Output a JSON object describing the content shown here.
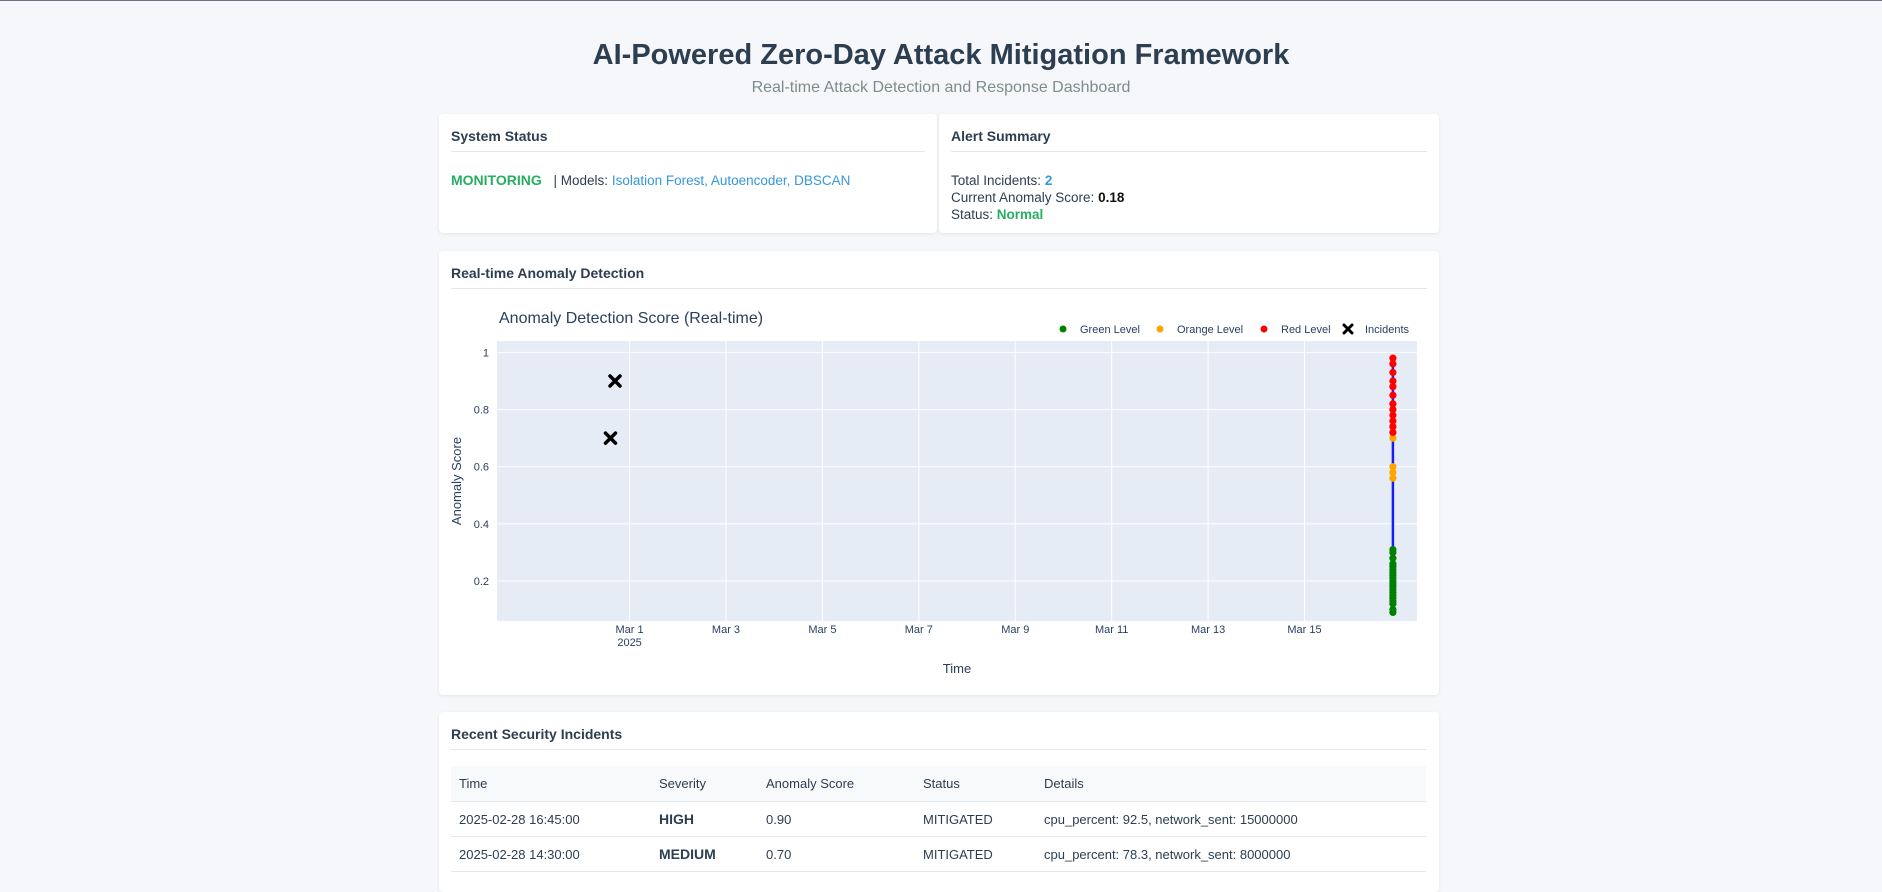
{
  "header": {
    "title": "AI-Powered Zero-Day Attack Mitigation Framework",
    "subtitle": "Real-time Attack Detection and Response Dashboard"
  },
  "system_status": {
    "heading": "System Status",
    "state": "MONITORING",
    "models_label": "| Models:",
    "models_value": "Isolation Forest, Autoencoder, DBSCAN",
    "state_color": "#27ae60"
  },
  "alert_summary": {
    "heading": "Alert Summary",
    "total_label": "Total Incidents:",
    "total_value": "2",
    "score_label": "Current Anomaly Score:",
    "score_value": "0.18",
    "status_label": "Status:",
    "status_value": "Normal"
  },
  "chart_section": {
    "heading": "Real-time Anomaly Detection"
  },
  "chart_data": {
    "type": "scatter",
    "title": "Anomaly Detection Score (Real-time)",
    "xlabel": "Time",
    "ylabel": "Anomaly Score",
    "x_ticks": [
      {
        "date": "2025-03-01",
        "label": "Mar 1",
        "sublabel": "2025"
      },
      {
        "date": "2025-03-03",
        "label": "Mar 3"
      },
      {
        "date": "2025-03-05",
        "label": "Mar 5"
      },
      {
        "date": "2025-03-07",
        "label": "Mar 7"
      },
      {
        "date": "2025-03-09",
        "label": "Mar 9"
      },
      {
        "date": "2025-03-11",
        "label": "Mar 11"
      },
      {
        "date": "2025-03-13",
        "label": "Mar 13"
      },
      {
        "date": "2025-03-15",
        "label": "Mar 15"
      }
    ],
    "y_ticks": [
      0.2,
      0.4,
      0.6,
      0.8,
      1
    ],
    "y_tick_labels": [
      "0.2",
      "0.4",
      "0.6",
      "0.8",
      "1"
    ],
    "xlim": [
      "2025-02-26T06:00",
      "2025-03-17T08:00"
    ],
    "ylim": [
      0.06,
      1.04
    ],
    "grid": true,
    "legend_placement": "top-right",
    "line": {
      "color": "#1a1aff",
      "x": "2025-03-16T20:00",
      "y_range": [
        0.09,
        0.98
      ]
    },
    "series": [
      {
        "name": "Green Level",
        "color": "#008000",
        "x": [
          "2025-03-16T20:00",
          "2025-03-16T20:00",
          "2025-03-16T20:00",
          "2025-03-16T20:00",
          "2025-03-16T20:00",
          "2025-03-16T20:00",
          "2025-03-16T20:00",
          "2025-03-16T20:00",
          "2025-03-16T20:00",
          "2025-03-16T20:00",
          "2025-03-16T20:00",
          "2025-03-16T20:00",
          "2025-03-16T20:00",
          "2025-03-16T20:00",
          "2025-03-16T20:00",
          "2025-03-16T20:00",
          "2025-03-16T20:00",
          "2025-03-16T20:00",
          "2025-03-16T20:00",
          "2025-03-16T20:00"
        ],
        "y": [
          0.09,
          0.1,
          0.12,
          0.13,
          0.14,
          0.15,
          0.16,
          0.17,
          0.18,
          0.19,
          0.2,
          0.21,
          0.22,
          0.23,
          0.24,
          0.25,
          0.26,
          0.28,
          0.3,
          0.31
        ]
      },
      {
        "name": "Orange Level",
        "color": "#ffa500",
        "x": [
          "2025-03-16T20:00",
          "2025-03-16T20:00",
          "2025-03-16T20:00",
          "2025-03-16T20:00"
        ],
        "y": [
          0.56,
          0.58,
          0.6,
          0.7
        ]
      },
      {
        "name": "Red Level",
        "color": "#ff0000",
        "x": [
          "2025-03-16T20:00",
          "2025-03-16T20:00",
          "2025-03-16T20:00",
          "2025-03-16T20:00",
          "2025-03-16T20:00",
          "2025-03-16T20:00",
          "2025-03-16T20:00",
          "2025-03-16T20:00",
          "2025-03-16T20:00",
          "2025-03-16T20:00",
          "2025-03-16T20:00",
          "2025-03-16T20:00"
        ],
        "y": [
          0.72,
          0.74,
          0.76,
          0.78,
          0.8,
          0.82,
          0.85,
          0.88,
          0.9,
          0.93,
          0.96,
          0.98
        ]
      },
      {
        "name": "Incidents",
        "color": "#000000",
        "marker": "x",
        "x": [
          "2025-02-28T16:45",
          "2025-02-28T14:30"
        ],
        "y": [
          0.9,
          0.7
        ]
      }
    ]
  },
  "incidents_section": {
    "heading": "Recent Security Incidents",
    "columns": [
      "Time",
      "Severity",
      "Anomaly Score",
      "Status",
      "Details"
    ],
    "rows": [
      {
        "time": "2025-02-28 16:45:00",
        "severity": "HIGH",
        "score": "0.90",
        "status": "MITIGATED",
        "details": "cpu_percent: 92.5, network_sent: 15000000"
      },
      {
        "time": "2025-02-28 14:30:00",
        "severity": "MEDIUM",
        "score": "0.70",
        "status": "MITIGATED",
        "details": "cpu_percent: 78.3, network_sent: 8000000"
      }
    ]
  }
}
